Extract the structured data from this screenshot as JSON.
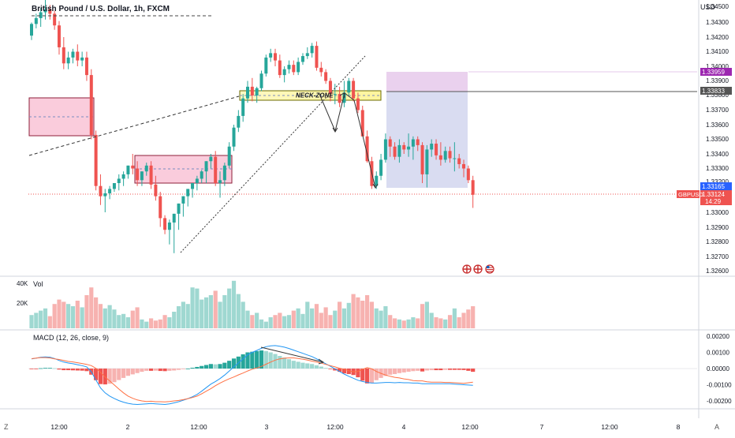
{
  "header": {
    "symbol_title": "British Pound / U.S. Dollar, 1h, FXCM",
    "currency": "USD",
    "volume_label": "Vol",
    "macd_label": "MACD (12, 26, close, 9)"
  },
  "price_labels": {
    "target": "1.33959",
    "entry": "1.33833",
    "stop": "1.33165",
    "last": "1.33124",
    "ticker": "GBPUSD",
    "countdown": "14:29"
  },
  "annotations": {
    "neck_zone": "NECK-ZONE"
  },
  "bottom_bar": {
    "left_button": "Z",
    "right_button": "A"
  },
  "colors": {
    "up": "#26a69a",
    "down": "#ef5350",
    "up_light": "#9fd8d1",
    "down_light": "#f7b2b0",
    "macd_line": "#2196f3",
    "signal_line": "#ff7043",
    "zone_pink": "#f8c8d6",
    "zone_yellow": "#fff59d",
    "target_zone": "#e1bee7",
    "stop_zone": "#c5cae9",
    "label_purple": "#9c27b0",
    "label_gray": "#555555",
    "label_blue": "#2962ff",
    "label_red": "#ef5350"
  },
  "chart_data": [
    {
      "type": "candlestick",
      "title": "British Pound / U.S. Dollar, 1h, FXCM",
      "ylabel": "USD",
      "y_ticks": [
        "1.34500",
        "1.34300",
        "1.34200",
        "1.34100",
        "1.34000",
        "1.33900",
        "1.33800",
        "1.33700",
        "1.33600",
        "1.33500",
        "1.33400",
        "1.33300",
        "1.33200",
        "1.33000",
        "1.32900",
        "1.32800",
        "1.32700",
        "1.32600"
      ],
      "x_ticks": [
        "12:00",
        "2",
        "12:00",
        "3",
        "12:00",
        "4",
        "12:00",
        "7",
        "12:00",
        "8"
      ],
      "ylim": [
        1.3258,
        1.3452
      ],
      "open": [
        1.3421,
        1.3429,
        1.3433,
        1.3437,
        1.3439,
        1.3436,
        1.3428,
        1.3413,
        1.3402,
        1.3406,
        1.341,
        1.3404,
        1.3406,
        1.3394,
        1.3353,
        1.3318,
        1.3311,
        1.3313,
        1.3316,
        1.332,
        1.3323,
        1.3326,
        1.3332,
        1.333,
        1.3322,
        1.3328,
        1.3332,
        1.3319,
        1.3311,
        1.3296,
        1.3288,
        1.3293,
        1.3299,
        1.3306,
        1.3311,
        1.3316,
        1.332,
        1.3323,
        1.3328,
        1.3335,
        1.3338,
        1.332,
        1.3322,
        1.3332,
        1.3345,
        1.3358,
        1.3366,
        1.3378,
        1.3386,
        1.338,
        1.3385,
        1.3395,
        1.3406,
        1.3409,
        1.3404,
        1.3394,
        1.3398,
        1.3401,
        1.3396,
        1.3403,
        1.3407,
        1.3409,
        1.3414,
        1.3399,
        1.3396,
        1.339,
        1.3381,
        1.3381,
        1.3375,
        1.3382,
        1.339,
        1.3378,
        1.337,
        1.3352,
        1.3335,
        1.3318,
        1.3325,
        1.3336,
        1.335,
        1.3345,
        1.3338,
        1.3346,
        1.3343,
        1.3345,
        1.335,
        1.3346,
        1.3326,
        1.3343,
        1.3347,
        1.3339,
        1.3336,
        1.3342,
        1.3337,
        1.3337,
        1.3333,
        1.333,
        1.3322
      ],
      "high": [
        1.343,
        1.3436,
        1.344,
        1.3446,
        1.3442,
        1.3438,
        1.3431,
        1.342,
        1.341,
        1.3412,
        1.3415,
        1.341,
        1.341,
        1.3398,
        1.3356,
        1.3326,
        1.3316,
        1.3318,
        1.332,
        1.3326,
        1.3328,
        1.3332,
        1.334,
        1.3335,
        1.3328,
        1.3334,
        1.3335,
        1.3325,
        1.3314,
        1.3298,
        1.3295,
        1.3299,
        1.3306,
        1.3311,
        1.3316,
        1.332,
        1.3325,
        1.3329,
        1.3335,
        1.334,
        1.3342,
        1.3328,
        1.3334,
        1.3348,
        1.336,
        1.337,
        1.3381,
        1.339,
        1.3392,
        1.3386,
        1.3397,
        1.3408,
        1.3412,
        1.3412,
        1.3408,
        1.34,
        1.3404,
        1.3404,
        1.3406,
        1.3409,
        1.3413,
        1.3416,
        1.3417,
        1.3403,
        1.3398,
        1.3392,
        1.3388,
        1.3386,
        1.339,
        1.3392,
        1.3392,
        1.3382,
        1.3373,
        1.3356,
        1.3338,
        1.3328,
        1.334,
        1.3354,
        1.3352,
        1.3348,
        1.335,
        1.3348,
        1.3354,
        1.3352,
        1.3352,
        1.3348,
        1.3346,
        1.335,
        1.335,
        1.3348,
        1.3345,
        1.3345,
        1.3348,
        1.334,
        1.3336,
        1.3332,
        1.3325
      ],
      "low": [
        1.3418,
        1.3426,
        1.3427,
        1.3432,
        1.3432,
        1.3425,
        1.3408,
        1.3398,
        1.3398,
        1.3402,
        1.34,
        1.34,
        1.339,
        1.335,
        1.3315,
        1.3305,
        1.33,
        1.3309,
        1.3314,
        1.3315,
        1.3318,
        1.3323,
        1.3326,
        1.3318,
        1.3318,
        1.3325,
        1.3316,
        1.3308,
        1.329,
        1.3285,
        1.3278,
        1.3272,
        1.3288,
        1.3297,
        1.3304,
        1.331,
        1.3315,
        1.332,
        1.332,
        1.333,
        1.3318,
        1.331,
        1.3318,
        1.333,
        1.3342,
        1.3355,
        1.3362,
        1.3375,
        1.3376,
        1.3375,
        1.3383,
        1.3393,
        1.3403,
        1.34,
        1.3392,
        1.3389,
        1.3395,
        1.3394,
        1.3394,
        1.3401,
        1.3405,
        1.3406,
        1.3397,
        1.3393,
        1.3388,
        1.3376,
        1.3374,
        1.3372,
        1.3372,
        1.338,
        1.3376,
        1.3368,
        1.3352,
        1.3334,
        1.3316,
        1.3316,
        1.3322,
        1.3334,
        1.3338,
        1.3336,
        1.3334,
        1.334,
        1.3338,
        1.3336,
        1.3342,
        1.332,
        1.3317,
        1.3338,
        1.3336,
        1.3332,
        1.3334,
        1.3334,
        1.3328,
        1.333,
        1.3324,
        1.332,
        1.3303
      ],
      "close": [
        1.3429,
        1.3433,
        1.3437,
        1.3439,
        1.3436,
        1.3428,
        1.3413,
        1.3402,
        1.3406,
        1.341,
        1.3404,
        1.3406,
        1.3394,
        1.3353,
        1.3318,
        1.3311,
        1.3313,
        1.3316,
        1.332,
        1.3323,
        1.3326,
        1.3332,
        1.333,
        1.3322,
        1.3328,
        1.3332,
        1.3319,
        1.3311,
        1.3296,
        1.3288,
        1.3293,
        1.3299,
        1.3306,
        1.3311,
        1.3316,
        1.332,
        1.3323,
        1.3328,
        1.3335,
        1.3338,
        1.332,
        1.3322,
        1.3332,
        1.3345,
        1.3358,
        1.3366,
        1.3378,
        1.3386,
        1.338,
        1.3385,
        1.3395,
        1.3406,
        1.3409,
        1.3404,
        1.3394,
        1.3398,
        1.3401,
        1.3396,
        1.3403,
        1.3407,
        1.3409,
        1.3414,
        1.3399,
        1.3396,
        1.339,
        1.3381,
        1.3381,
        1.3375,
        1.3382,
        1.339,
        1.3378,
        1.337,
        1.3352,
        1.3335,
        1.3318,
        1.3325,
        1.3336,
        1.335,
        1.3345,
        1.3338,
        1.3346,
        1.3343,
        1.3345,
        1.335,
        1.3346,
        1.3326,
        1.3343,
        1.3347,
        1.3339,
        1.3336,
        1.3342,
        1.3337,
        1.3337,
        1.3333,
        1.333,
        1.3322,
        1.3312
      ]
    },
    {
      "type": "bar",
      "title": "Vol",
      "y_ticks": [
        "40K",
        "20K"
      ],
      "ylim": [
        0,
        45000
      ],
      "values": [
        12000,
        14000,
        16000,
        18000,
        11000,
        22000,
        26000,
        24000,
        22000,
        20000,
        25000,
        19000,
        30000,
        37000,
        28000,
        22000,
        18000,
        21000,
        17000,
        12000,
        13000,
        10000,
        16000,
        19000,
        8000,
        6000,
        9000,
        7000,
        8000,
        12000,
        10000,
        15000,
        20000,
        24000,
        22000,
        37000,
        36000,
        26000,
        28000,
        30000,
        34000,
        24000,
        30000,
        36000,
        43000,
        31000,
        24000,
        16000,
        12000,
        14000,
        8000,
        6000,
        10000,
        12000,
        14000,
        11000,
        12000,
        16000,
        18000,
        13000,
        24000,
        18000,
        22000,
        14000,
        19000,
        12000,
        16000,
        24000,
        18000,
        23000,
        31000,
        28000,
        25000,
        30000,
        24000,
        18000,
        16000,
        20000,
        12000,
        9000,
        8000,
        7000,
        8000,
        10000,
        9000,
        22000,
        24000,
        14000,
        10000,
        9000,
        8000,
        12000,
        18000,
        10000,
        14000,
        17000,
        20000
      ],
      "up_down": [
        "u",
        "u",
        "u",
        "u",
        "d",
        "d",
        "d",
        "d",
        "u",
        "u",
        "d",
        "u",
        "d",
        "d",
        "d",
        "d",
        "u",
        "u",
        "u",
        "u",
        "u",
        "u",
        "d",
        "d",
        "u",
        "u",
        "d",
        "d",
        "d",
        "d",
        "u",
        "u",
        "u",
        "u",
        "u",
        "u",
        "u",
        "u",
        "u",
        "u",
        "d",
        "u",
        "u",
        "u",
        "u",
        "u",
        "u",
        "u",
        "d",
        "u",
        "u",
        "u",
        "u",
        "d",
        "d",
        "u",
        "u",
        "d",
        "u",
        "u",
        "u",
        "u",
        "d",
        "d",
        "d",
        "d",
        "u",
        "d",
        "u",
        "u",
        "d",
        "d",
        "d",
        "d",
        "d",
        "u",
        "u",
        "u",
        "d",
        "d",
        "u",
        "d",
        "u",
        "u",
        "d",
        "d",
        "u",
        "u",
        "d",
        "d",
        "u",
        "d",
        "u",
        "d",
        "d",
        "d",
        "d"
      ]
    },
    {
      "type": "line",
      "title": "MACD (12, 26, close, 9)",
      "y_ticks": [
        "0.00200",
        "0.00100",
        "0.00000",
        "-0.00100",
        "-0.00200"
      ],
      "ylim": [
        -0.0025,
        0.0025
      ],
      "histogram": [
        -1e-05,
        -1e-05,
        2e-05,
        4e-05,
        4e-05,
        2e-05,
        -6e-05,
        -0.0001,
        -0.0001,
        -0.00011,
        -0.00012,
        -0.00013,
        -0.00016,
        -0.00038,
        -0.00072,
        -0.00096,
        -0.00098,
        -0.00094,
        -0.00084,
        -0.00071,
        -0.00058,
        -0.00045,
        -0.00036,
        -0.00028,
        -0.0002,
        -0.00014,
        -0.00014,
        -0.00013,
        -0.00015,
        -0.00016,
        -0.00014,
        -0.00012,
        -8e-05,
        -4e-05,
        0.0,
        5e-05,
        0.0001,
        0.00016,
        0.00022,
        0.00028,
        0.00026,
        0.00028,
        0.00036,
        0.00048,
        0.00062,
        0.00074,
        0.00088,
        0.001,
        0.00104,
        0.00108,
        0.00112,
        0.00108,
        0.001,
        0.0009,
        0.00078,
        0.00068,
        0.00058,
        0.00048,
        0.00042,
        0.00036,
        0.00032,
        0.00028,
        0.0002,
        0.00012,
        4e-05,
        -4e-05,
        -0.00012,
        -0.0002,
        -0.0003,
        -0.00034,
        -0.0004,
        -0.00054,
        -0.00075,
        -0.00092,
        -0.00088,
        -0.00072,
        -0.00058,
        -0.00046,
        -0.00038,
        -0.00034,
        -0.00028,
        -0.00024,
        -0.0002,
        -0.00016,
        -0.00014,
        -0.00018,
        -0.00012,
        -0.0001,
        -0.0001,
        -0.0001,
        -8e-05,
        -8e-05,
        -8e-05,
        -8e-05,
        -9e-05,
        -0.00014,
        -0.0002
      ],
      "series": [
        {
          "values": [
            0.0006,
            0.00064,
            0.0007,
            0.00072,
            0.0007,
            0.00062,
            0.0005,
            0.0004,
            0.00034,
            0.0003,
            0.00024,
            0.00018,
            0.0001,
            -0.0002,
            -0.0007,
            -0.0012,
            -0.0015,
            -0.0017,
            -0.00185,
            -0.00198,
            -0.00208,
            -0.00215,
            -0.0022,
            -0.00222,
            -0.0022,
            -0.00218,
            -0.00216,
            -0.00218,
            -0.0022,
            -0.00222,
            -0.00218,
            -0.00212,
            -0.00205,
            -0.00196,
            -0.00186,
            -0.00174,
            -0.0016,
            -0.0014,
            -0.00118,
            -0.00096,
            -0.0008,
            -0.00062,
            -0.0004,
            -0.00015,
            0.0001,
            0.00035,
            0.0006,
            0.00085,
            0.001,
            0.00112,
            0.00125,
            0.00135,
            0.0014,
            0.00142,
            0.00138,
            0.00132,
            0.00124,
            0.00114,
            0.00104,
            0.00094,
            0.00084,
            0.00074,
            0.0006,
            0.00045,
            0.0003,
            0.00014,
            -2e-05,
            -0.00018,
            -0.00034,
            -0.00048,
            -0.0006,
            -0.00072,
            -0.0008,
            -0.00086,
            -0.0009,
            -0.0009,
            -0.00088,
            -0.00086,
            -0.00086,
            -0.00088,
            -0.00086,
            -0.00088,
            -0.00088,
            -0.0009,
            -0.0009,
            -0.00094,
            -0.00094,
            -0.00094,
            -0.00094,
            -0.00094,
            -0.00094,
            -0.00094,
            -0.00096,
            -0.00098,
            -0.001,
            -0.00102,
            -0.00104
          ]
        },
        {
          "values": [
            0.00061,
            0.00065,
            0.00068,
            0.00068,
            0.00066,
            0.0006,
            0.00056,
            0.0005,
            0.00044,
            0.00041,
            0.00036,
            0.00031,
            0.00026,
            0.00018,
            2e-05,
            -0.00024,
            -0.00052,
            -0.00076,
            -0.00101,
            -0.00127,
            -0.0015,
            -0.0017,
            -0.00184,
            -0.00194,
            -0.002,
            -0.00204,
            -0.00202,
            -0.00205,
            -0.00205,
            -0.00206,
            -0.00204,
            -0.002,
            -0.00197,
            -0.00192,
            -0.00186,
            -0.00179,
            -0.0017,
            -0.00156,
            -0.0014,
            -0.00124,
            -0.00106,
            -0.0009,
            -0.00076,
            -0.00063,
            -0.00052,
            -0.00039,
            -0.00028,
            -0.00015,
            -4e-05,
            4e-05,
            0.00013,
            0.00027,
            0.0004,
            0.00052,
            0.0006,
            0.00064,
            0.00066,
            0.00066,
            0.00062,
            0.00058,
            0.00052,
            0.00046,
            0.0004,
            0.00033,
            0.00026,
            0.00018,
            0.0001,
            2e-05,
            -4e-05,
            -0.00014,
            -0.0002,
            -0.00018,
            -5e-05,
            6e-05,
            -2e-05,
            -0.00018,
            -0.0003,
            -0.0004,
            -0.00048,
            -0.00054,
            -0.00058,
            -0.00064,
            -0.00068,
            -0.00074,
            -0.00076,
            -0.00076,
            -0.00082,
            -0.00084,
            -0.00084,
            -0.00084,
            -0.00086,
            -0.00086,
            -0.00088,
            -0.0009,
            -0.00091,
            -0.00088,
            -0.00084
          ]
        }
      ]
    }
  ]
}
